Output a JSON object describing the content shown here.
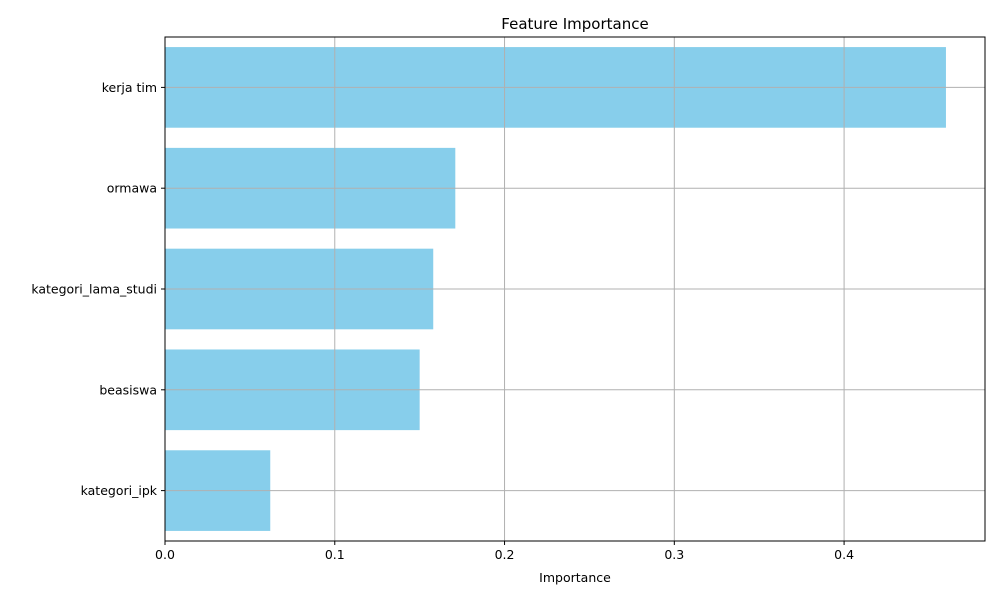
{
  "chart_data": {
    "type": "bar",
    "orientation": "horizontal",
    "title": "Feature Importance",
    "xlabel": "Importance",
    "ylabel": "",
    "categories": [
      "kerja tim",
      "ormawa",
      "kategori_lama_studi",
      "beasiswa",
      "kategori_ipk"
    ],
    "values": [
      0.46,
      0.171,
      0.158,
      0.15,
      0.062
    ],
    "xlim": [
      0,
      0.483
    ],
    "xticks": [
      0.0,
      0.1,
      0.2,
      0.3,
      0.4
    ],
    "xtick_labels": [
      "0.0",
      "0.1",
      "0.2",
      "0.3",
      "0.4"
    ],
    "grid": true,
    "bar_color": "#87CEEB",
    "grid_color": "#b0b0b0"
  }
}
